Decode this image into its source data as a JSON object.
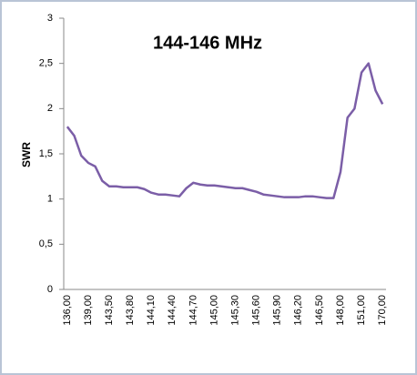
{
  "chart_data": {
    "type": "line",
    "title": "144-146 MHz",
    "y_label": "SWR",
    "categories": [
      "136,00",
      null,
      null,
      "139,00",
      null,
      null,
      "143,50",
      null,
      null,
      "143,80",
      null,
      null,
      "144,10",
      null,
      null,
      "144,40",
      null,
      null,
      "144,70",
      null,
      null,
      "145,00",
      null,
      null,
      "145,30",
      null,
      null,
      "145,60",
      null,
      null,
      "145,90",
      null,
      null,
      "146,20",
      null,
      null,
      "146,50",
      null,
      null,
      "148,00",
      null,
      null,
      "151,00",
      null,
      null,
      "170,00"
    ],
    "series": [
      {
        "name": "SWR",
        "color": "#7b5ea7",
        "values": [
          1.8,
          1.7,
          1.48,
          1.4,
          1.36,
          1.2,
          1.14,
          1.14,
          1.13,
          1.13,
          1.13,
          1.11,
          1.07,
          1.05,
          1.05,
          1.04,
          1.03,
          1.12,
          1.18,
          1.16,
          1.15,
          1.15,
          1.14,
          1.13,
          1.12,
          1.12,
          1.1,
          1.08,
          1.05,
          1.04,
          1.03,
          1.02,
          1.02,
          1.02,
          1.03,
          1.03,
          1.02,
          1.01,
          1.01,
          1.3,
          1.9,
          2.0,
          2.4,
          2.5,
          2.2,
          2.05
        ]
      }
    ],
    "ylim": [
      0,
      3
    ],
    "yticks": [
      0,
      {
        "value": 0.5,
        "label": "0,5"
      },
      1,
      {
        "value": 1.5,
        "label": "1,5"
      },
      2,
      {
        "value": 2.5,
        "label": "2,5"
      },
      3
    ],
    "grid": false
  }
}
